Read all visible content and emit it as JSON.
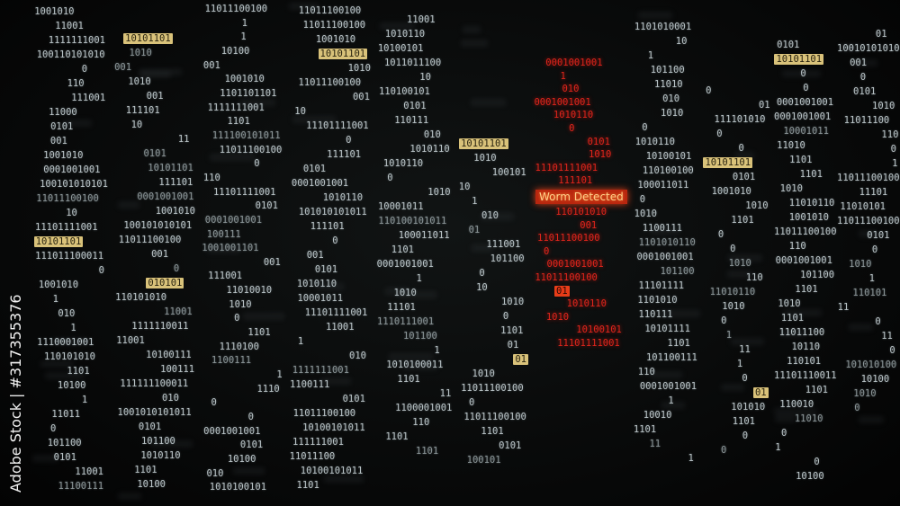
{
  "alert": {
    "label": "Worm Detected",
    "color": "#e0251c"
  },
  "watermark": "Adobe Stock | #317355376",
  "colors": {
    "binary": "#b9c3c6",
    "highlight": "#d9c27a",
    "alert": "#e0251c",
    "background": "#050606"
  },
  "columns": [
    [
      "1001010",
      "11001",
      "1111111001",
      "100110101010",
      "0",
      "110",
      "111001",
      "11000",
      "0101",
      "001",
      "1001010",
      "0001001001",
      "100101010101",
      "11011100100",
      "10",
      "11101111001",
      {
        "text": "10101101",
        "highlight": true
      },
      "111011100011",
      "0",
      "1001010",
      "1",
      "010",
      "1",
      "1110001001",
      "110101010",
      "1101",
      "10100",
      "1",
      "11011",
      "0",
      "101100",
      "0101",
      "11001",
      "11100111"
    ],
    [
      {
        "text": "10101101",
        "highlight": true
      },
      "1010",
      "001",
      "1010",
      "001",
      "111101",
      "10",
      "11",
      "0101",
      "10101101",
      "111101",
      "0001001001",
      "1001010",
      "100101010101",
      "11011100100",
      "001",
      "0",
      {
        "text": "010101",
        "highlight": true
      },
      "110101010",
      "11001",
      "1111110011",
      "11001",
      "10100111",
      "100111",
      "111111100011",
      "010",
      "1001010101011",
      "0101",
      "101100",
      "1010110",
      "1101",
      "10100"
    ],
    [
      "11011100100",
      "1",
      "1",
      "10100",
      "001",
      "1001010",
      "1101101101",
      "1111111001",
      "1101",
      "111100101011",
      "11011100100",
      "0",
      "110",
      "11101111001",
      "0101",
      "0001001001",
      "100111",
      "1001001101",
      "001",
      "111001",
      "11010010",
      "1010",
      "0",
      "1101",
      "1110100",
      "1100111",
      "1",
      "1110",
      "0",
      "0",
      "0001001001",
      "0101",
      "10100",
      "010",
      "1010100101"
    ],
    [
      "11011100100",
      "11011100100",
      "1001010",
      {
        "text": "10101101",
        "highlight": true
      },
      "1010",
      "11011100100",
      "001",
      "10",
      "11101111001",
      "0",
      "111101",
      "0101",
      "0001001001",
      "1010110",
      "101010101011",
      "111101",
      "0",
      "001",
      "0101",
      "1010110",
      "10001011",
      "11101111001",
      "11001",
      "1",
      "010",
      "1111111001",
      "1100111",
      "0101",
      "11011100100",
      "10100101011",
      "111111001",
      "11011100",
      "10100101011",
      "1101"
    ],
    [
      "11001",
      "1010110",
      "10100101",
      "1011011100",
      "10",
      "110100101",
      "0101",
      "110111",
      "010",
      "1010110",
      "1010110",
      "0",
      "1010",
      "10001011",
      "110100101011",
      "100011011",
      "1101",
      "0001001001",
      "1",
      "1010",
      "11101",
      "1110111001",
      "101100",
      "1",
      "1010100011",
      "1101",
      "11",
      "1100001001",
      "110",
      "1101",
      "1101"
    ],
    [
      {
        "text": "10101101",
        "highlight": true
      },
      "1010",
      "100101",
      "10",
      "1",
      "010",
      "01",
      "111001",
      "101100",
      "0",
      "10",
      "1010",
      "0",
      "1101",
      "01",
      {
        "text": "01",
        "highlight": true
      },
      "1010",
      "11011100100",
      "0",
      "11011100100",
      "1101",
      "0101",
      "100101"
    ],
    [
      "1101010001",
      "10",
      "1",
      "101100",
      "11010",
      "010",
      "1010",
      "0",
      "1010110",
      "10100101",
      "110100100",
      "100011011",
      "0",
      "1010",
      "1100111",
      "1101010110",
      "0001001001",
      "101100",
      "11101111",
      "1101010",
      "110111",
      "10101111",
      "1101",
      "101100111",
      "110",
      "0001001001",
      "1",
      "10010",
      "1101",
      "11",
      "1"
    ],
    [
      "0",
      "01",
      "111101010",
      "0",
      "0",
      {
        "text": "10101101",
        "highlight": true
      },
      "0101",
      "1001010",
      "1010",
      "1101",
      "0",
      "0",
      "1010",
      "110",
      "11010110",
      "1010",
      "0",
      "1",
      "11",
      "1",
      "0",
      {
        "text": "01",
        "highlight": true
      },
      "101010",
      "1101",
      "0",
      "0"
    ],
    [
      "0101",
      {
        "text": "10101101",
        "highlight": true
      },
      "0",
      "0",
      "0001001001",
      "0001001001",
      "10001011",
      "11010",
      "1101",
      "1101",
      "1010",
      "11010110",
      "1001010",
      "11011100100",
      "110",
      "0001001001",
      "101100",
      "1101",
      "1010",
      "1101",
      "11011100",
      "10110",
      "110101",
      "11101110011",
      "1101",
      "110010",
      "11010",
      "0",
      "1",
      "0",
      "10100"
    ],
    [
      "01",
      "10010101010",
      "001",
      "0",
      "0101",
      "1010",
      "11011100",
      "110",
      "0",
      "1",
      "11011100100",
      "11101",
      "11010101",
      "11011100100",
      "0101",
      "0",
      "1010",
      "1",
      "110101",
      "11",
      "0",
      "11",
      "0",
      "101010100",
      "10100",
      "1010",
      "0"
    ]
  ],
  "red_stream": [
    "0001001001",
    "1",
    "010",
    "0001001001",
    "1010110",
    "0",
    "0101",
    "1010",
    "11101111001",
    "111101",
    "110101010",
    "001",
    "11011100100",
    "0",
    "0001001001",
    "11011100100",
    {
      "text": "01",
      "highlight": true
    },
    "1010110",
    "1010",
    "10100101",
    "11101111001"
  ]
}
